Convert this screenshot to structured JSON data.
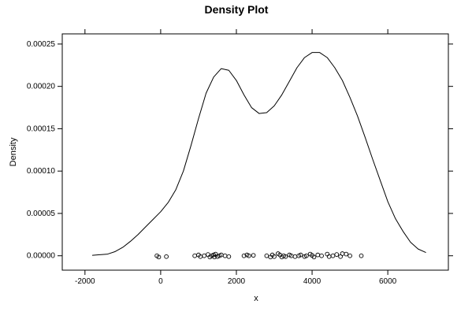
{
  "chart_data": {
    "type": "line",
    "title": "Density Plot",
    "xlabel": "x",
    "ylabel": "Density",
    "xlim": [
      -2600,
      7600
    ],
    "ylim": [
      -1.7e-05,
      0.000262
    ],
    "x_ticks": [
      -2000,
      0,
      2000,
      4000,
      6000
    ],
    "x_tick_labels": [
      "-2000",
      "0",
      "2000",
      "4000",
      "6000"
    ],
    "y_ticks": [
      0,
      5e-05,
      0.0001,
      0.00015,
      0.0002,
      0.00025
    ],
    "y_tick_labels": [
      "0.00000",
      "0.00005",
      "0.00010",
      "0.00015",
      "0.00020",
      "0.00025"
    ],
    "grid": false,
    "colors": {
      "line": "#000000",
      "points": "#000000",
      "frame": "#000000"
    },
    "series": [
      {
        "x": [
          -1800,
          -1400,
          -1200,
          -1000,
          -800,
          -600,
          -400,
          -200,
          0,
          200,
          400,
          600,
          800,
          1000,
          1200,
          1400,
          1600,
          1800,
          2000,
          2200,
          2400,
          2600,
          2800,
          3000,
          3200,
          3400,
          3600,
          3800,
          4000,
          4200,
          4400,
          4600,
          4800,
          5000,
          5200,
          5400,
          5600,
          5800,
          6000,
          6200,
          6400,
          6600,
          6800,
          7000
        ],
        "y": [
          5e-07,
          2e-06,
          5e-06,
          1e-05,
          1.7e-05,
          2.5e-05,
          3.4e-05,
          4.3e-05,
          5.2e-05,
          6.3e-05,
          7.8e-05,
          0.0001,
          0.00013,
          0.000162,
          0.000192,
          0.000211,
          0.000221,
          0.000219,
          0.000207,
          0.00019,
          0.000175,
          0.000168,
          0.000169,
          0.000177,
          0.00019,
          0.000206,
          0.000222,
          0.000234,
          0.00024,
          0.00024,
          0.000234,
          0.000222,
          0.000207,
          0.000187,
          0.000165,
          0.00014,
          0.000114,
          8.9e-05,
          6.4e-05,
          4.4e-05,
          2.9e-05,
          1.6e-05,
          8e-06,
          4e-06
        ]
      }
    ],
    "rug_points": [
      {
        "x": -100,
        "y": 0
      },
      {
        "x": -50,
        "y": -1.5e-06
      },
      {
        "x": 150,
        "y": -1e-06
      },
      {
        "x": 900,
        "y": 0
      },
      {
        "x": 1000,
        "y": 1e-06
      },
      {
        "x": 1050,
        "y": -1e-06
      },
      {
        "x": 1150,
        "y": 0
      },
      {
        "x": 1250,
        "y": 1.5e-06
      },
      {
        "x": 1300,
        "y": -1.5e-06
      },
      {
        "x": 1350,
        "y": 0
      },
      {
        "x": 1400,
        "y": 1e-06
      },
      {
        "x": 1420,
        "y": -1.5e-06
      },
      {
        "x": 1450,
        "y": 2e-06
      },
      {
        "x": 1500,
        "y": -1e-06
      },
      {
        "x": 1550,
        "y": 0
      },
      {
        "x": 1600,
        "y": 1e-06
      },
      {
        "x": 1700,
        "y": 0
      },
      {
        "x": 1800,
        "y": -1e-06
      },
      {
        "x": 2200,
        "y": 0
      },
      {
        "x": 2280,
        "y": 1e-06
      },
      {
        "x": 2330,
        "y": 0
      },
      {
        "x": 2450,
        "y": 5e-07
      },
      {
        "x": 2800,
        "y": 0
      },
      {
        "x": 2900,
        "y": -1.5e-06
      },
      {
        "x": 2950,
        "y": 1e-06
      },
      {
        "x": 3000,
        "y": -1e-06
      },
      {
        "x": 3100,
        "y": 2.5e-06
      },
      {
        "x": 3150,
        "y": 1e-06
      },
      {
        "x": 3200,
        "y": -1.5e-06
      },
      {
        "x": 3250,
        "y": 0
      },
      {
        "x": 3300,
        "y": -1e-06
      },
      {
        "x": 3400,
        "y": 1e-06
      },
      {
        "x": 3450,
        "y": 0
      },
      {
        "x": 3550,
        "y": -1e-06
      },
      {
        "x": 3650,
        "y": 0
      },
      {
        "x": 3700,
        "y": 1e-06
      },
      {
        "x": 3800,
        "y": -1e-06
      },
      {
        "x": 3850,
        "y": 0
      },
      {
        "x": 3950,
        "y": 2e-06
      },
      {
        "x": 4000,
        "y": 5e-07
      },
      {
        "x": 4050,
        "y": -1.5e-06
      },
      {
        "x": 4150,
        "y": 1e-06
      },
      {
        "x": 4250,
        "y": 0
      },
      {
        "x": 4400,
        "y": 2e-06
      },
      {
        "x": 4450,
        "y": -1e-06
      },
      {
        "x": 4550,
        "y": 0
      },
      {
        "x": 4650,
        "y": 1.5e-06
      },
      {
        "x": 4750,
        "y": -1e-06
      },
      {
        "x": 4800,
        "y": 2.5e-06
      },
      {
        "x": 4900,
        "y": 2e-06
      },
      {
        "x": 5000,
        "y": 0
      },
      {
        "x": 5300,
        "y": 0
      }
    ]
  }
}
